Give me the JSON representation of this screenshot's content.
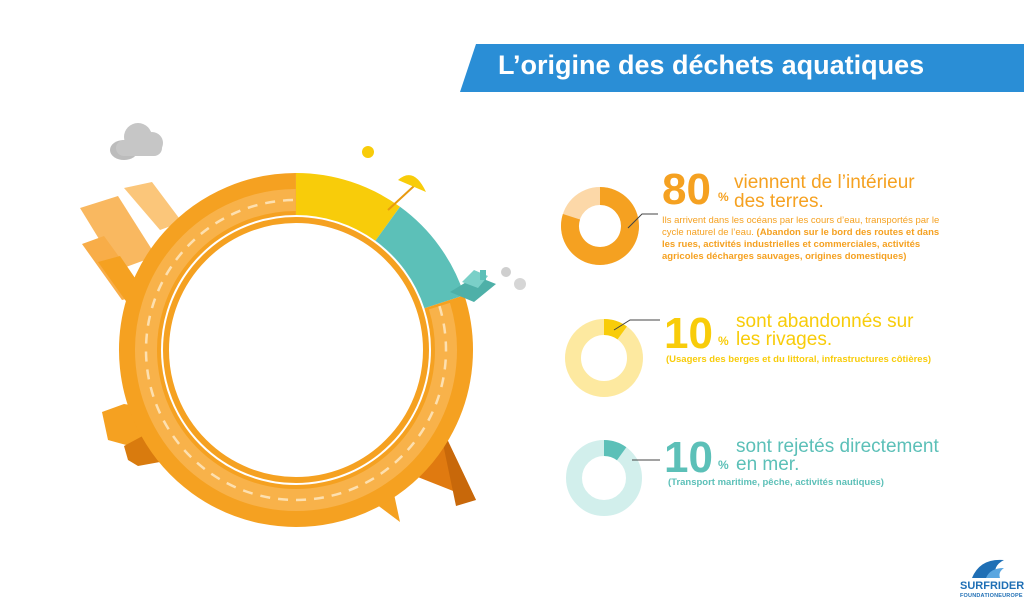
{
  "title": "L’origine des déchets aquatiques",
  "colors": {
    "orange": "#f5a121",
    "light_orange": "#fcd8a8",
    "yellow": "#f8cc0a",
    "light_yellow": "#fde9a0",
    "teal": "#5cc0b8",
    "light_teal": "#d2efec",
    "blue": "#2a8ed6"
  },
  "chart_data": [
    {
      "type": "pie",
      "style": "donut",
      "series": [
        {
          "value": 80
        },
        {
          "value": 10
        },
        {
          "value": 10
        }
      ]
    },
    {
      "type": "pie",
      "style": "donut",
      "categories": [
        "viennent de l’intérieur des terres.",
        "sont abandonnés sur les rivages.",
        "sont rejetés directement en mer."
      ],
      "values": [
        80,
        10,
        10
      ]
    }
  ],
  "stats": [
    {
      "value": "80",
      "unit": "%",
      "headline_1": "viennent de l’intérieur",
      "headline_2": "des terres.",
      "desc_plain": "Ils arrivent dans les océans par les cours d’eau, transportés par le cycle naturel de l’eau. ",
      "desc_bold": "(Abandon sur le bord des routes et dans les rues, activités industrielles et commerciales, activités agricoles décharges sauvages, origines domestiques)"
    },
    {
      "value": "10",
      "unit": "%",
      "headline_1": "sont abandonnés sur",
      "headline_2": "les rivages.",
      "desc_bold": "(Usagers des berges et du littoral, infrastructures côtières)"
    },
    {
      "value": "10",
      "unit": "%",
      "headline_1": "sont rejetés directement",
      "headline_2": "en mer.",
      "desc_bold": "(Transport maritime, pêche, activités nautiques)"
    }
  ],
  "logo": {
    "name": "SURFRIDER",
    "sub_1": "FOUNDATION",
    "sub_2": "EUROPE"
  }
}
